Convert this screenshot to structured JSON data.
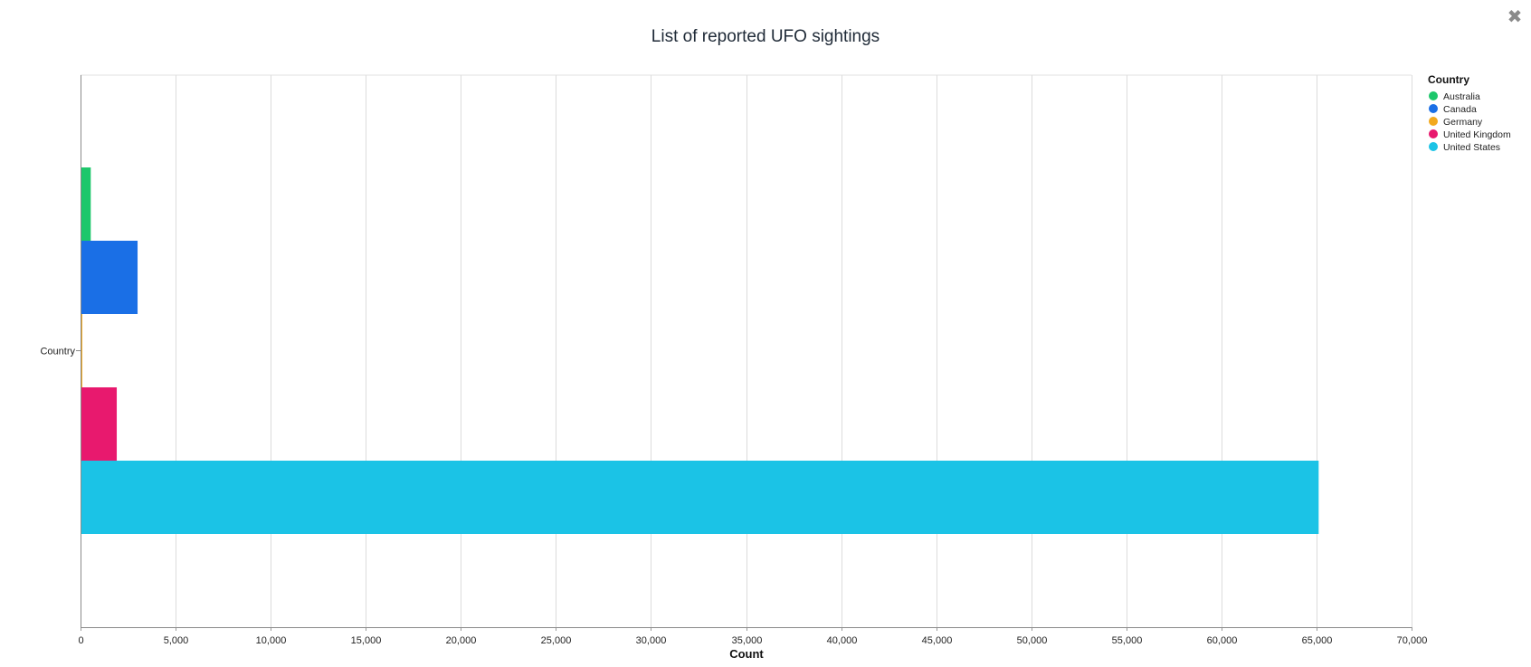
{
  "close_icon": "✖",
  "chart_data": {
    "type": "bar",
    "orientation": "horizontal",
    "title": "List of reported UFO sightings",
    "xlabel": "Count",
    "ylabel": "",
    "category_label": "Country",
    "xlim": [
      0,
      70000
    ],
    "x_ticks": [
      0,
      5000,
      10000,
      15000,
      20000,
      25000,
      30000,
      35000,
      40000,
      45000,
      50000,
      55000,
      60000,
      65000,
      70000
    ],
    "x_tick_labels": [
      "0",
      "5,000",
      "10,000",
      "15,000",
      "20,000",
      "25,000",
      "30,000",
      "35,000",
      "40,000",
      "45,000",
      "50,000",
      "55,000",
      "60,000",
      "65,000",
      "70,000"
    ],
    "grid": true,
    "legend_title": "Country",
    "legend_position": "top-right",
    "series": [
      {
        "name": "Australia",
        "value": 538,
        "color": "#1dc76b"
      },
      {
        "name": "Canada",
        "value": 3000,
        "color": "#1a6fe6"
      },
      {
        "name": "Germany",
        "value": 86,
        "color": "#f2a91e"
      },
      {
        "name": "United Kingdom",
        "value": 1905,
        "color": "#e8196e"
      },
      {
        "name": "United States",
        "value": 65114,
        "color": "#1bc3e6"
      }
    ]
  }
}
